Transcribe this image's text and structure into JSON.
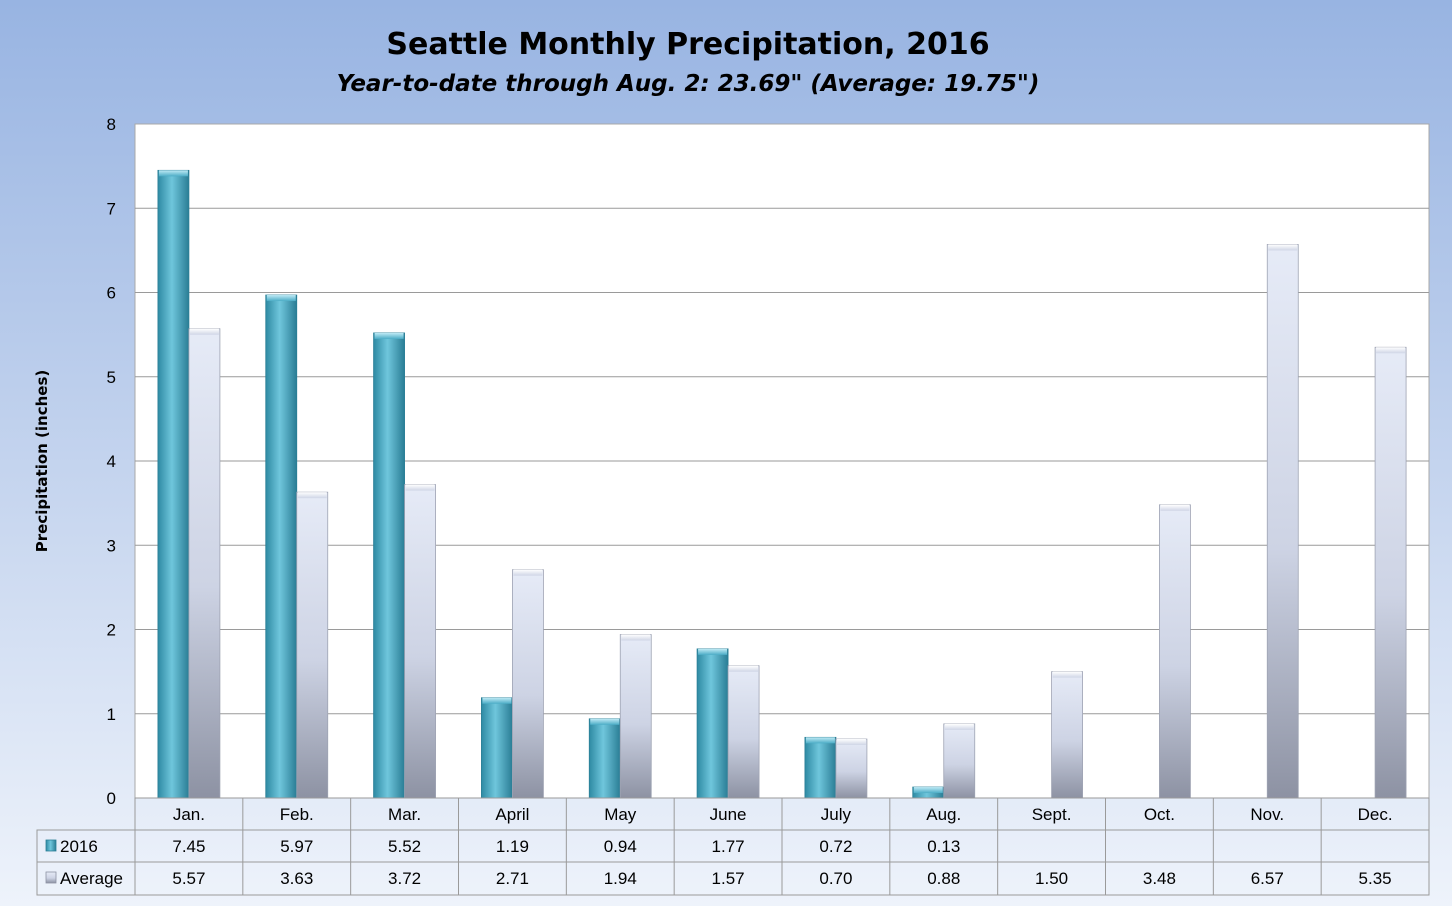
{
  "chart_data": {
    "type": "bar",
    "title": "Seattle Monthly Precipitation, 2016",
    "subtitle": "Year-to-date through Aug. 2: 23.69\" (Average: 19.75\")",
    "xlabel": "",
    "ylabel": "Precipitation (inches)",
    "ylim": [
      0,
      8
    ],
    "yticks": [
      "0",
      "1",
      "2",
      "3",
      "4",
      "5",
      "6",
      "7",
      "8"
    ],
    "grid": true,
    "legend": "data-table",
    "categories": [
      "Jan.",
      "Feb.",
      "Mar.",
      "April",
      "May",
      "June",
      "July",
      "Aug.",
      "Sept.",
      "Oct.",
      "Nov.",
      "Dec."
    ],
    "series": [
      {
        "name": "2016",
        "values": [
          7.45,
          5.97,
          5.52,
          1.19,
          0.94,
          1.77,
          0.72,
          0.13,
          null,
          null,
          null,
          null
        ],
        "labels": [
          "7.45",
          "5.97",
          "5.52",
          "1.19",
          "0.94",
          "1.77",
          "0.72",
          "0.13",
          "",
          "",
          "",
          ""
        ],
        "color": "#4bacc6"
      },
      {
        "name": "Average",
        "values": [
          5.57,
          3.63,
          3.72,
          2.71,
          1.94,
          1.57,
          0.7,
          0.88,
          1.5,
          3.48,
          6.57,
          5.35
        ],
        "labels": [
          "5.57",
          "3.63",
          "3.72",
          "2.71",
          "1.94",
          "1.57",
          "0.70",
          "0.88",
          "1.50",
          "3.48",
          "6.57",
          "5.35"
        ],
        "color": "#c9cfe0"
      }
    ]
  }
}
